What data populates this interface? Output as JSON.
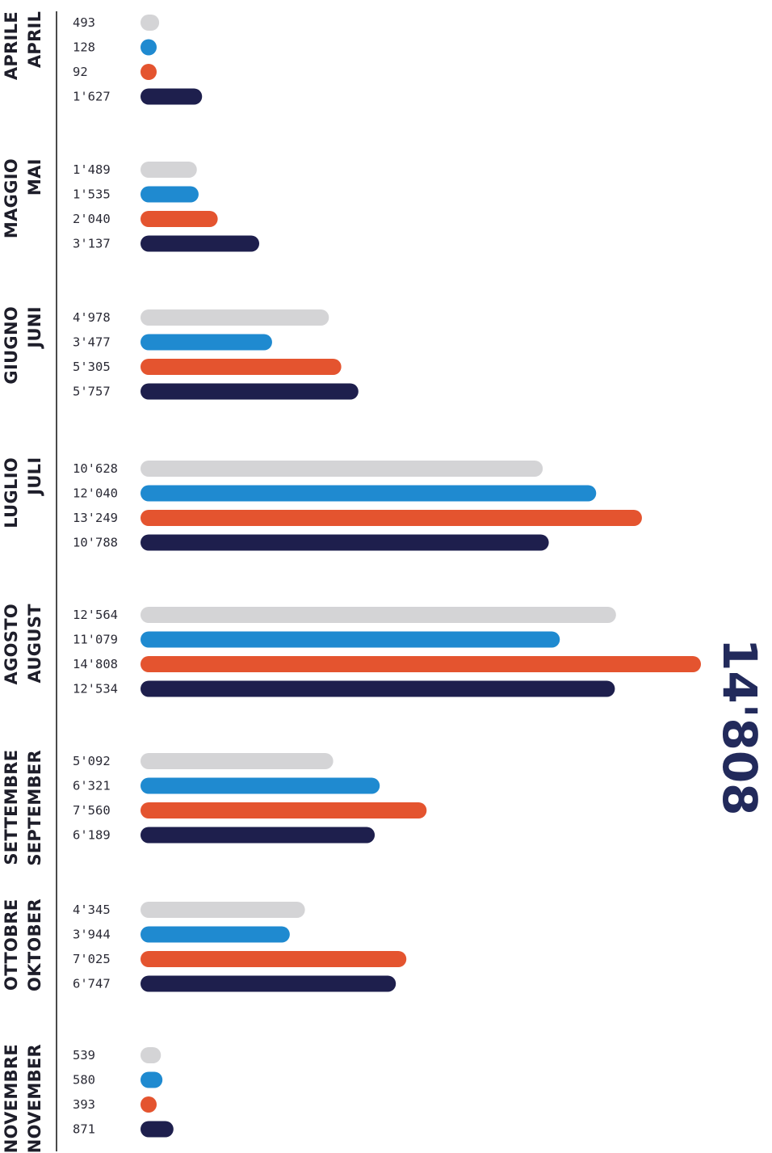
{
  "highlight_value": "14'808",
  "months": [
    {
      "it": "APRILE",
      "de": "APRIL"
    },
    {
      "it": "MAGGIO",
      "de": "MAI"
    },
    {
      "it": "GIUGNO",
      "de": "JUNI"
    },
    {
      "it": "LUGLIO",
      "de": "JULI"
    },
    {
      "it": "AGOSTO",
      "de": "AUGUST"
    },
    {
      "it": "SETTEMBRE",
      "de": "SEPTEMBER"
    },
    {
      "it": "OTTOBRE",
      "de": "OKTOBER"
    },
    {
      "it": "NOVEMBRE",
      "de": "NOVEMBER"
    }
  ],
  "chart_data": {
    "type": "bar",
    "orientation": "horizontal",
    "categories": [
      "APRILE / APRIL",
      "MAGGIO / MAI",
      "GIUGNO / JUNI",
      "LUGLIO / JULI",
      "AGOSTO / AUGUST",
      "SETTEMBRE / SEPTEMBER",
      "OTTOBRE / OKTOBER",
      "NOVEMBRE / NOVEMBER"
    ],
    "series": [
      {
        "color": "#d4d4d6",
        "values": [
          493,
          1489,
          4978,
          10628,
          12564,
          5092,
          4345,
          539
        ],
        "labels": [
          "493",
          "1'489",
          "4'978",
          "10'628",
          "12'564",
          "5'092",
          "4'345",
          "539"
        ]
      },
      {
        "color": "#1f8ad0",
        "values": [
          128,
          1535,
          3477,
          12040,
          11079,
          6321,
          3944,
          580
        ],
        "labels": [
          "128",
          "1'535",
          "3'477",
          "12'040",
          "11'079",
          "6'321",
          "3'944",
          "580"
        ]
      },
      {
        "color": "#e4542f",
        "values": [
          92,
          2040,
          5305,
          13249,
          14808,
          7560,
          7025,
          393
        ],
        "labels": [
          "92",
          "2'040",
          "5'305",
          "13'249",
          "14'808",
          "7'560",
          "7'025",
          "393"
        ]
      },
      {
        "color": "#1e1f4d",
        "values": [
          1627,
          3137,
          5757,
          10788,
          12534,
          6189,
          6747,
          871
        ],
        "labels": [
          "1'627",
          "3'137",
          "5'757",
          "10'788",
          "12'534",
          "6'189",
          "6'747",
          "871"
        ]
      }
    ],
    "xlim": [
      0,
      14808
    ],
    "grid": false,
    "legend": "none"
  }
}
